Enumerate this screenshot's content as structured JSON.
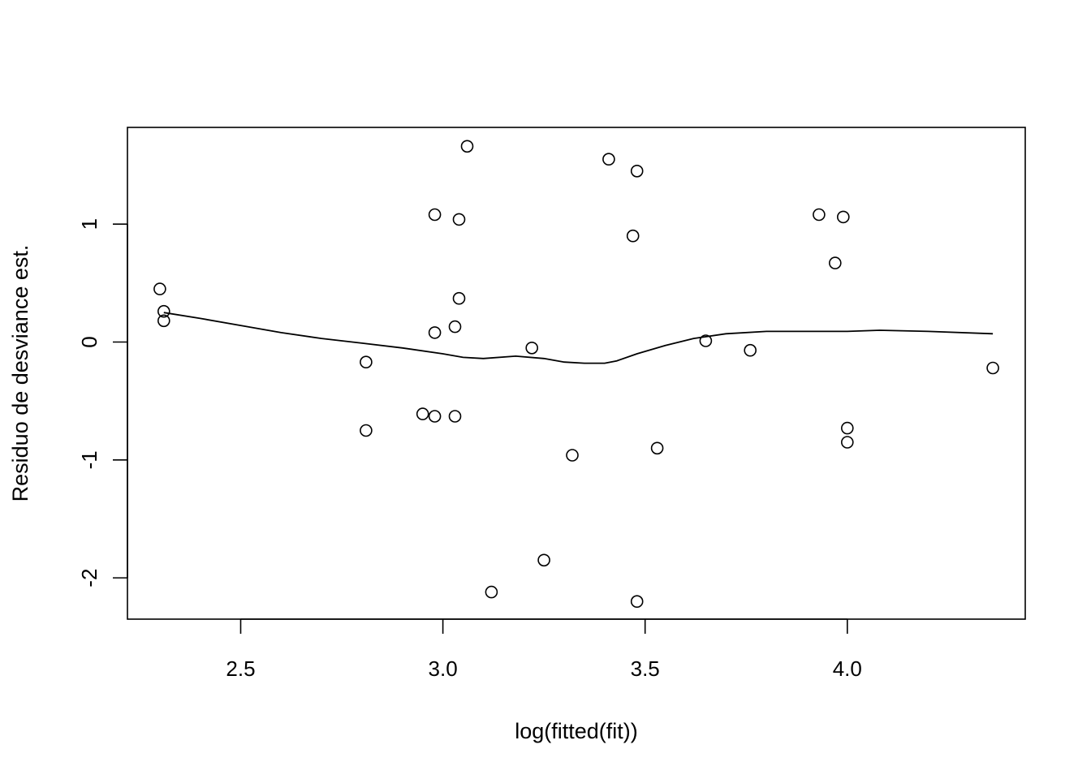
{
  "chart_data": {
    "type": "scatter",
    "title": "",
    "xlabel": "log(fitted(fit))",
    "ylabel": "Residuo de desviance est.",
    "xlim": [
      2.22,
      4.44
    ],
    "ylim": [
      -2.35,
      1.82
    ],
    "x_ticks": [
      2.5,
      3.0,
      3.5,
      4.0
    ],
    "x_tick_labels": [
      "2.5",
      "3.0",
      "3.5",
      "4.0"
    ],
    "y_ticks": [
      -2,
      -1,
      0,
      1
    ],
    "y_tick_labels": [
      "-2",
      "-1",
      "0",
      "1"
    ],
    "grid": false,
    "legend": "none",
    "points": {
      "x": [
        2.3,
        2.31,
        2.31,
        2.81,
        2.81,
        2.95,
        2.98,
        2.98,
        2.98,
        3.03,
        3.03,
        3.04,
        3.04,
        3.06,
        3.12,
        3.22,
        3.25,
        3.32,
        3.41,
        3.47,
        3.48,
        3.48,
        3.53,
        3.65,
        3.76,
        3.93,
        3.97,
        3.99,
        4.0,
        4.0,
        4.36
      ],
      "y": [
        0.45,
        0.26,
        0.18,
        -0.17,
        -0.75,
        -0.61,
        1.08,
        0.08,
        -0.63,
        0.13,
        -0.63,
        0.37,
        1.04,
        1.66,
        -2.12,
        -0.05,
        -1.85,
        -0.96,
        1.55,
        0.9,
        1.45,
        -2.2,
        -0.9,
        0.01,
        -0.07,
        1.08,
        0.67,
        1.06,
        -0.73,
        -0.85,
        -0.22
      ]
    },
    "smooth_line": {
      "x": [
        2.31,
        2.4,
        2.5,
        2.6,
        2.7,
        2.8,
        2.9,
        3.0,
        3.05,
        3.1,
        3.18,
        3.25,
        3.3,
        3.35,
        3.4,
        3.43,
        3.48,
        3.55,
        3.62,
        3.7,
        3.8,
        3.9,
        4.0,
        4.08,
        4.2,
        4.36
      ],
      "y": [
        0.25,
        0.2,
        0.14,
        0.08,
        0.03,
        -0.01,
        -0.05,
        -0.1,
        -0.13,
        -0.14,
        -0.12,
        -0.14,
        -0.17,
        -0.18,
        -0.18,
        -0.16,
        -0.1,
        -0.03,
        0.03,
        0.07,
        0.09,
        0.09,
        0.09,
        0.1,
        0.09,
        0.07
      ]
    }
  }
}
